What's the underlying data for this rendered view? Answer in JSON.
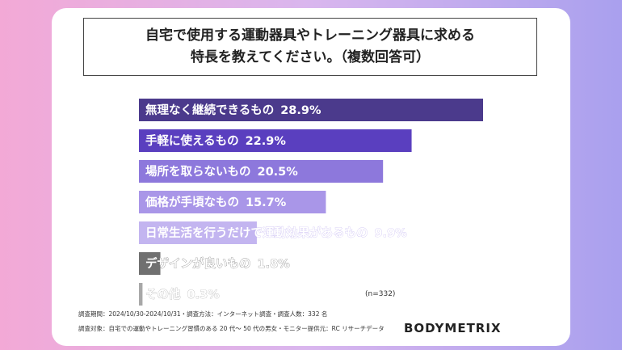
{
  "title": {
    "line1": "自宅で使用する運動器具やトレーニング器具に求める",
    "line2": "特長を教えてください。（複数回答可）"
  },
  "chart_data": {
    "type": "bar",
    "orientation": "horizontal",
    "categories": [
      "無理なく継続できるもの",
      "手軽に使えるもの",
      "場所を取らないもの",
      "価格が手頃なもの",
      "日常生活を行うだけで運動効果があるもの",
      "デザインが良いもの",
      "その他"
    ],
    "values": [
      28.9,
      22.9,
      20.5,
      15.7,
      9.9,
      1.8,
      0.3
    ],
    "value_labels": [
      "28.9%",
      "22.9%",
      "20.5%",
      "15.7%",
      "9.9%",
      "1.8%",
      "0.3%"
    ],
    "colors": [
      "#4b3a8c",
      "#5a3fbf",
      "#8d78dc",
      "#a996e8",
      "#c3b5f0",
      "#707070",
      "#a8a8a8"
    ],
    "xlim": [
      0,
      28.9
    ]
  },
  "note_n": "(n=332)",
  "meta": {
    "line1": "調査期間：2024/10/30-2024/10/31・調査方法：インターネット調査・調査人数：332 名",
    "line2": "調査対象：自宅での運動やトレーニング習慣のある 20 代〜 50 代の男女・モニター提供元：RC リサーチデータ"
  },
  "brand": "BODYMETRIX"
}
